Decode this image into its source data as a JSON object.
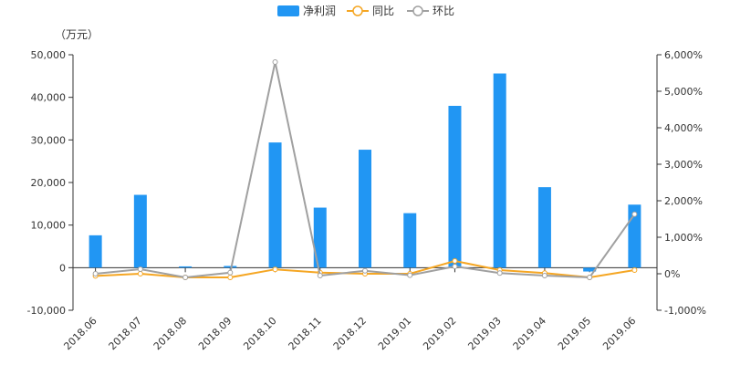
{
  "chart_data": {
    "type": "bar",
    "unit_label": "（万元）",
    "categories": [
      "2018.06",
      "2018.07",
      "2018.08",
      "2018.09",
      "2018.10",
      "2018.11",
      "2018.12",
      "2019.01",
      "2019.02",
      "2019.03",
      "2019.04",
      "2019.05",
      "2019.06"
    ],
    "series": [
      {
        "name": "净利润",
        "type": "bar",
        "axis": "left",
        "color": "#2196f3",
        "values": [
          7600,
          17100,
          300,
          400,
          29400,
          14100,
          27700,
          12800,
          38000,
          45600,
          18900,
          -900,
          14800
        ]
      },
      {
        "name": "同比",
        "type": "line",
        "axis": "right",
        "color": "#f5a623",
        "values": [
          -60,
          0,
          -100,
          -100,
          120,
          30,
          0,
          0,
          350,
          100,
          20,
          -100,
          100
        ]
      },
      {
        "name": "环比",
        "type": "line",
        "axis": "right",
        "color": "#a0a0a0",
        "values": [
          0,
          125,
          -100,
          30,
          5800,
          -50,
          80,
          -40,
          200,
          20,
          -50,
          -100,
          1630
        ]
      }
    ],
    "y_left": {
      "min": -10000,
      "max": 50000,
      "step": 10000,
      "tick_labels": [
        "-10,000",
        "0",
        "10,000",
        "20,000",
        "30,000",
        "40,000",
        "50,000"
      ]
    },
    "y_right": {
      "min": -1000,
      "max": 6000,
      "step": 1000,
      "tick_labels": [
        "-1,000%",
        "0%",
        "1,000%",
        "2,000%",
        "3,000%",
        "4,000%",
        "5,000%",
        "6,000%"
      ]
    },
    "legend_position": "top-center",
    "grid": false
  }
}
